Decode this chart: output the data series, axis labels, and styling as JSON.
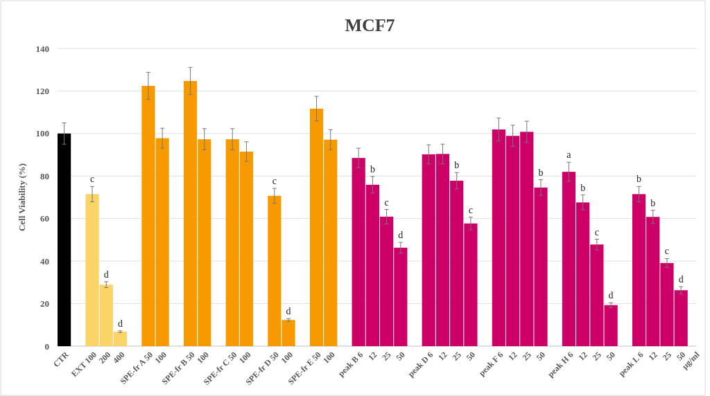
{
  "chart_data": {
    "type": "bar",
    "title": "MCF7",
    "ylabel": "Cell Viability (%)",
    "categories": [
      "CTR",
      null,
      "EXT 100",
      "200",
      "400",
      null,
      "SPE-fr A 50",
      "100",
      null,
      "SPE-fr B 50",
      "100",
      null,
      "SPE-fr C 50",
      "100",
      null,
      "SPE-fr D 50",
      "100",
      null,
      "SPE-fr E 50",
      "100",
      null,
      "peak B 6",
      "12",
      "25",
      "50",
      null,
      "peak D 6",
      "12",
      "25",
      "50",
      null,
      "peak F 6",
      "12",
      "25",
      "50",
      null,
      "peak H 6",
      "12",
      "25",
      "50",
      null,
      "peak L 6",
      "12",
      "25",
      "50",
      "µg/ml"
    ],
    "values": [
      100,
      null,
      71.5,
      28.9,
      6.8,
      null,
      122.4,
      97.8,
      null,
      124.7,
      97.3,
      null,
      97.3,
      91.5,
      null,
      70.7,
      12.3,
      null,
      111.7,
      97.1,
      null,
      88.5,
      75.9,
      60.9,
      46.3,
      null,
      90.2,
      90.4,
      77.8,
      57.7,
      null,
      101.9,
      98.9,
      100.8,
      74.6,
      null,
      82,
      67.6,
      47.8,
      19.3,
      null,
      71.5,
      60.8,
      39.1,
      26.3,
      null
    ],
    "errors": [
      5,
      null,
      3.6,
      1.4,
      0.4,
      null,
      6.4,
      4.7,
      null,
      6.4,
      5,
      null,
      5,
      4.6,
      null,
      3.5,
      0.6,
      null,
      5.8,
      4.7,
      null,
      4.6,
      3.9,
      3.4,
      2.5,
      null,
      4.5,
      4.6,
      3.8,
      3,
      null,
      5.4,
      5,
      5,
      3.7,
      null,
      4.5,
      3.5,
      2.5,
      1.1,
      null,
      3.6,
      3.1,
      2.1,
      1.7,
      null
    ],
    "value_labels": [
      null,
      null,
      "c",
      "d",
      "d",
      null,
      null,
      null,
      null,
      null,
      null,
      null,
      null,
      null,
      null,
      "c",
      "d",
      null,
      null,
      null,
      null,
      null,
      "b",
      "c",
      "d",
      null,
      null,
      null,
      "b",
      "c",
      null,
      null,
      null,
      null,
      "b",
      null,
      "a",
      "b",
      "c",
      "d",
      null,
      "b",
      "b",
      "c",
      "d",
      null
    ],
    "colors": [
      "#000000",
      null,
      "#fad466",
      "#fad466",
      "#fad466",
      null,
      "#f79a00",
      "#f79a00",
      null,
      "#f79a00",
      "#f79a00",
      null,
      "#f79a00",
      "#f79a00",
      null,
      "#f79a00",
      "#f79a00",
      null,
      "#f79a00",
      "#f79a00",
      null,
      "#cc0066",
      "#cc0066",
      "#cc0066",
      "#cc0066",
      null,
      "#cc0066",
      "#cc0066",
      "#cc0066",
      "#cc0066",
      null,
      "#cc0066",
      "#cc0066",
      "#cc0066",
      "#cc0066",
      null,
      "#cc0066",
      "#cc0066",
      "#cc0066",
      "#cc0066",
      null,
      "#cc0066",
      "#cc0066",
      "#cc0066",
      "#cc0066",
      null
    ],
    "ylim": [
      0,
      140
    ],
    "yticks": [
      0,
      20,
      40,
      60,
      80,
      100,
      120,
      140
    ],
    "grid": "y"
  }
}
